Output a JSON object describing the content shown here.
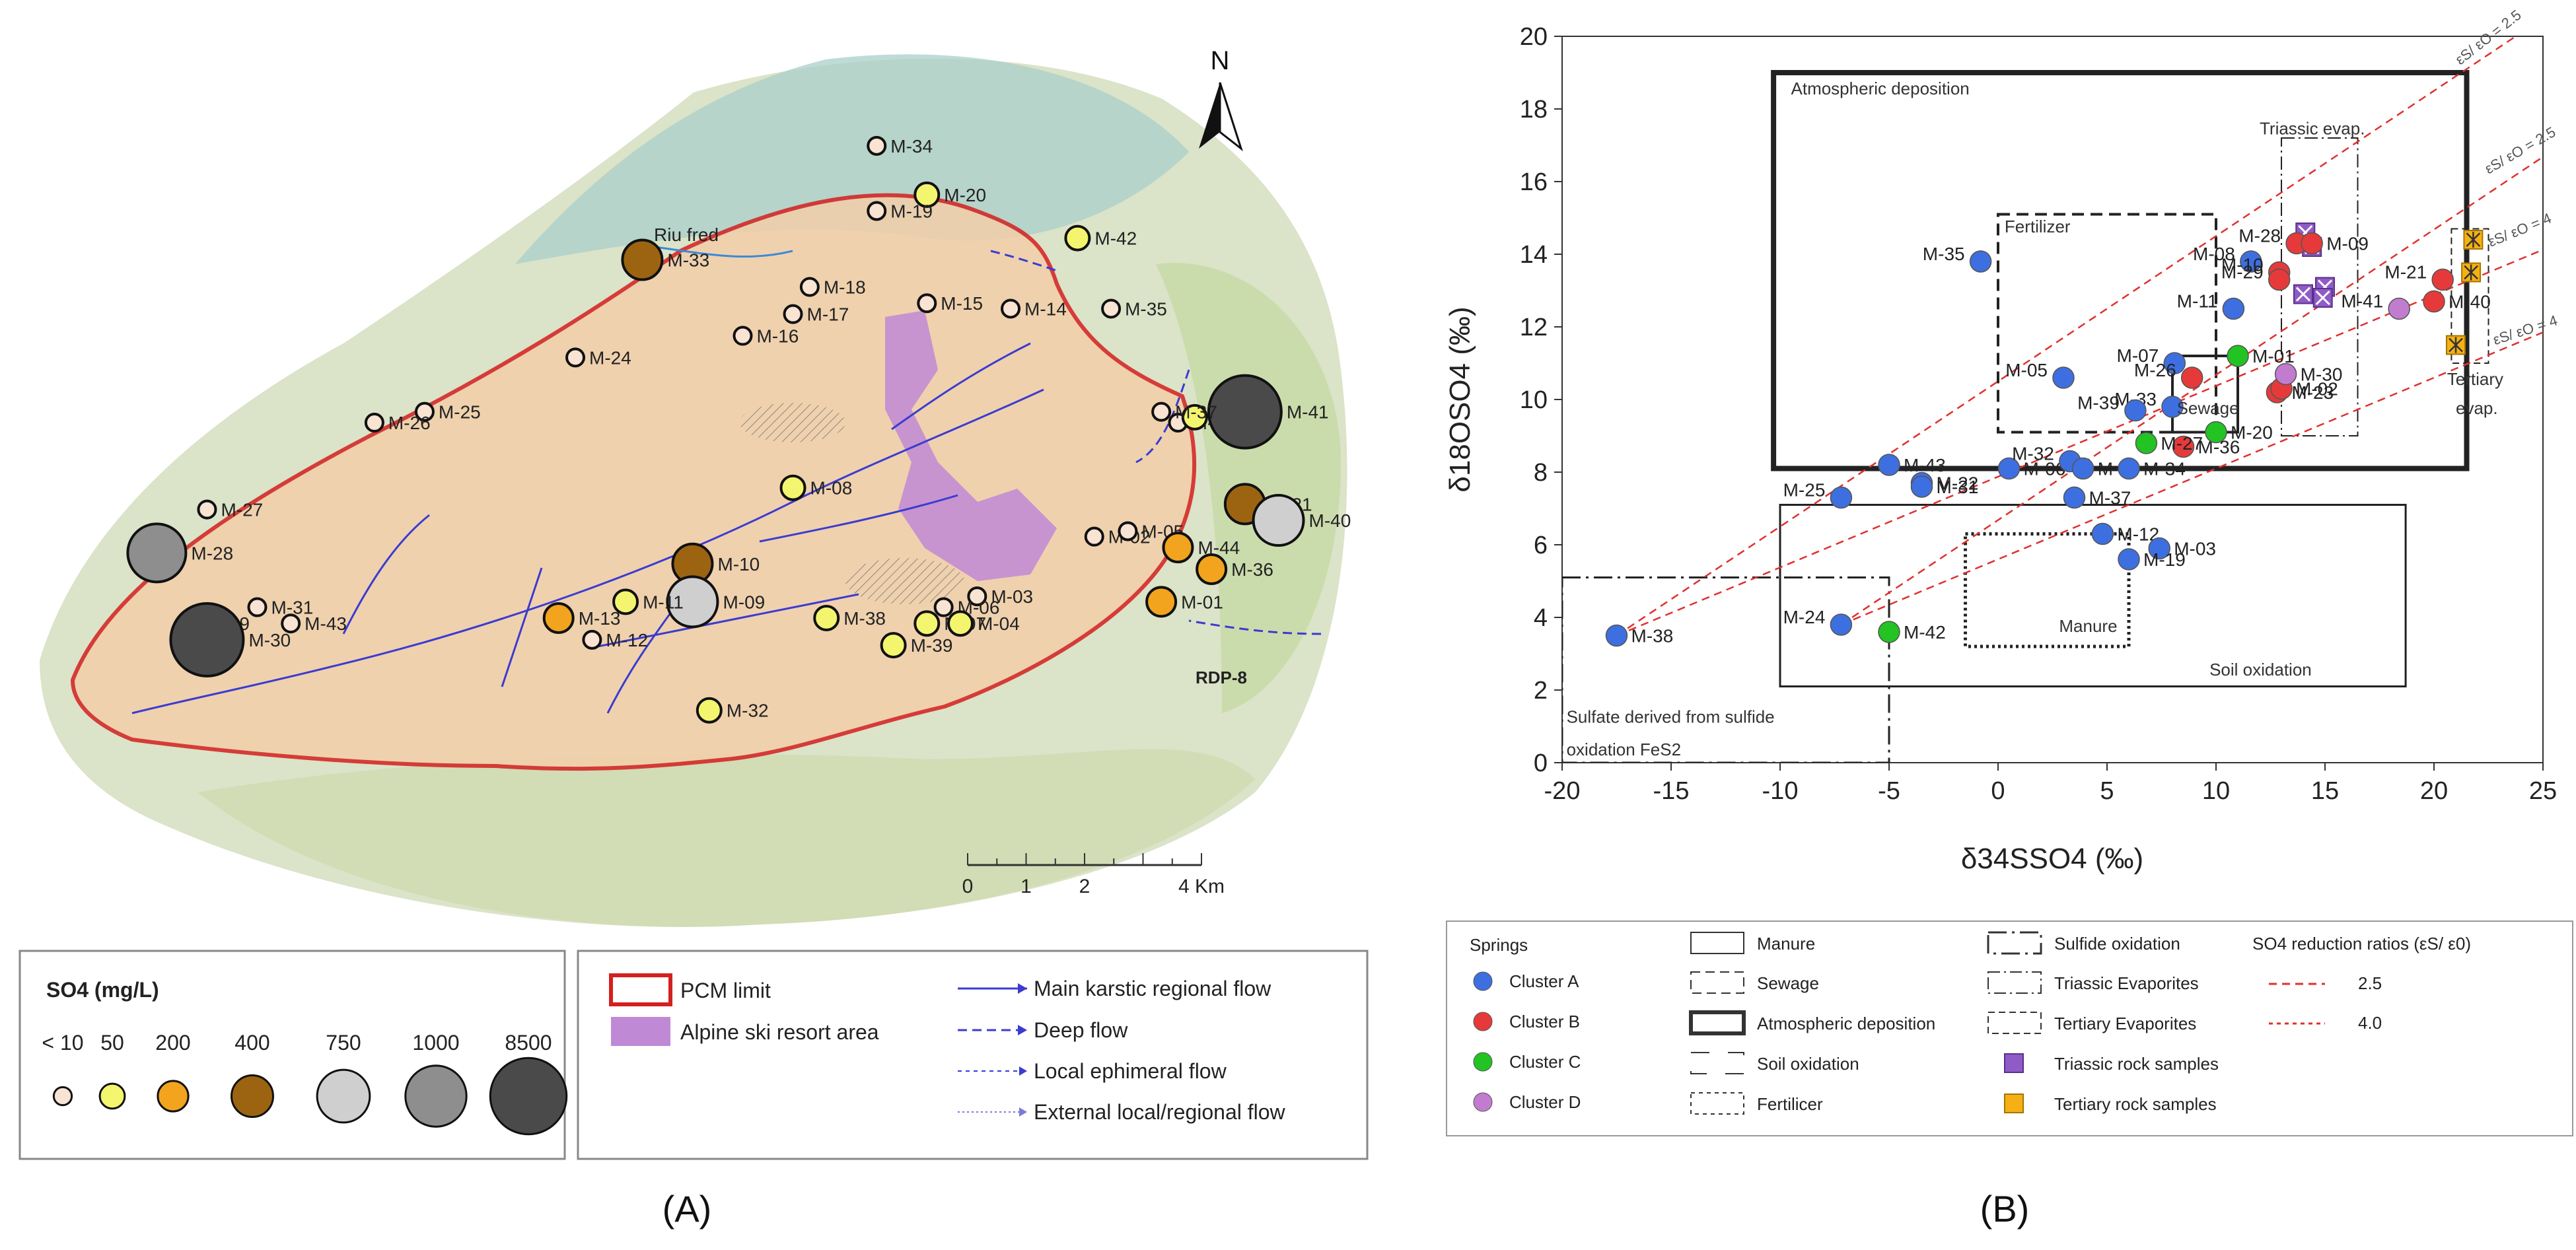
{
  "panel_labels": {
    "a": "(A)",
    "b": "(B)"
  },
  "map": {
    "north_label": "N",
    "place_label": "Riu fred",
    "rdp_label": "RDP-8",
    "scale": {
      "ticks": [
        "0",
        "1",
        "2",
        "4 Km"
      ],
      "tick_km": [
        0,
        1,
        2,
        4
      ]
    },
    "points": [
      {
        "id": "M-34",
        "cls": "lt10",
        "km": [
          5.0,
          2.2
        ]
      },
      {
        "id": "M-20",
        "cls": "50",
        "km": [
          5.3,
          3.1
        ]
      },
      {
        "id": "M-19",
        "cls": "lt10",
        "km": [
          5.0,
          3.4
        ]
      },
      {
        "id": "M-42",
        "cls": "50",
        "km": [
          6.2,
          3.9
        ]
      },
      {
        "id": "M-33",
        "cls": "400",
        "km": [
          3.6,
          4.3
        ]
      },
      {
        "id": "M-18",
        "cls": "lt10",
        "km": [
          4.6,
          4.8
        ]
      },
      {
        "id": "M-17",
        "cls": "lt10",
        "km": [
          4.5,
          5.3
        ]
      },
      {
        "id": "M-16",
        "cls": "lt10",
        "km": [
          4.2,
          5.7
        ]
      },
      {
        "id": "M-15",
        "cls": "lt10",
        "km": [
          5.3,
          5.1
        ]
      },
      {
        "id": "M-14",
        "cls": "lt10",
        "km": [
          5.8,
          5.2
        ]
      },
      {
        "id": "M-35",
        "cls": "lt10",
        "km": [
          6.4,
          5.2
        ]
      },
      {
        "id": "M-24",
        "cls": "lt10",
        "km": [
          3.2,
          6.1
        ]
      },
      {
        "id": "M-25",
        "cls": "lt10",
        "km": [
          2.3,
          7.1
        ]
      },
      {
        "id": "M-26",
        "cls": "lt10",
        "km": [
          2.0,
          7.3
        ]
      },
      {
        "id": "M-22",
        "cls": "lt10",
        "km": [
          6.8,
          7.3
        ]
      },
      {
        "id": "M-23",
        "cls": "50",
        "km": [
          6.9,
          7.2
        ]
      },
      {
        "id": "M-41",
        "cls": "8500",
        "km": [
          7.2,
          7.1
        ]
      },
      {
        "id": "M-37",
        "cls": "lt10",
        "km": [
          6.7,
          7.1
        ]
      },
      {
        "id": "M-08",
        "cls": "50",
        "km": [
          4.5,
          8.5
        ]
      },
      {
        "id": "M-27",
        "cls": "lt10",
        "km": [
          1.0,
          8.9
        ]
      },
      {
        "id": "M-21",
        "cls": "400",
        "km": [
          7.2,
          8.8
        ]
      },
      {
        "id": "M-40",
        "cls": "750",
        "km": [
          7.4,
          9.1
        ]
      },
      {
        "id": "M-02",
        "cls": "lt10",
        "km": [
          6.3,
          9.4
        ]
      },
      {
        "id": "M-05",
        "cls": "lt10",
        "km": [
          6.5,
          9.3
        ]
      },
      {
        "id": "M-10",
        "cls": "400",
        "km": [
          3.9,
          9.9
        ]
      },
      {
        "id": "M-09",
        "cls": "750",
        "km": [
          3.9,
          10.6
        ]
      },
      {
        "id": "M-11",
        "cls": "50",
        "km": [
          3.5,
          10.6
        ]
      },
      {
        "id": "M-13",
        "cls": "200",
        "km": [
          3.1,
          10.9
        ]
      },
      {
        "id": "M-28",
        "cls": "1000",
        "km": [
          0.7,
          9.7
        ]
      },
      {
        "id": "M-29",
        "cls": "50",
        "km": [
          0.9,
          11.0
        ]
      },
      {
        "id": "M-30",
        "cls": "8500",
        "km": [
          1.0,
          11.3
        ]
      },
      {
        "id": "M-31",
        "cls": "lt10",
        "km": [
          1.3,
          10.7
        ]
      },
      {
        "id": "M-43",
        "cls": "lt10",
        "km": [
          1.5,
          11.0
        ]
      },
      {
        "id": "M-12",
        "cls": "lt10",
        "km": [
          3.3,
          11.3
        ]
      },
      {
        "id": "M-38",
        "cls": "50",
        "km": [
          4.7,
          10.9
        ]
      },
      {
        "id": "M-39",
        "cls": "50",
        "km": [
          5.1,
          11.4
        ]
      },
      {
        "id": "M-03",
        "cls": "lt10",
        "km": [
          5.6,
          10.5
        ]
      },
      {
        "id": "M-06",
        "cls": "lt10",
        "km": [
          5.4,
          10.7
        ]
      },
      {
        "id": "M-07",
        "cls": "50",
        "km": [
          5.3,
          11.0
        ]
      },
      {
        "id": "M-04",
        "cls": "50",
        "km": [
          5.5,
          11.0
        ]
      },
      {
        "id": "M-01",
        "cls": "200",
        "km": [
          6.7,
          10.6
        ]
      },
      {
        "id": "M-36",
        "cls": "200",
        "km": [
          7.0,
          10.0
        ]
      },
      {
        "id": "M-44",
        "cls": "200",
        "km": [
          6.8,
          9.6
        ]
      },
      {
        "id": "M-32",
        "cls": "50",
        "km": [
          4.0,
          12.6
        ]
      }
    ],
    "so4_legend": {
      "title": "SO4 (mg/L)",
      "classes": [
        {
          "key": "lt10",
          "label": "< 10",
          "color": "#f9e3d3"
        },
        {
          "key": "50",
          "label": "50",
          "color": "#f4f56e"
        },
        {
          "key": "200",
          "label": "200",
          "color": "#f2a41e"
        },
        {
          "key": "400",
          "label": "400",
          "color": "#9c6411"
        },
        {
          "key": "750",
          "label": "750",
          "color": "#cfcfcf"
        },
        {
          "key": "1000",
          "label": "1000",
          "color": "#8e8e8e"
        },
        {
          "key": "8500",
          "label": "8500",
          "color": "#4a4a4a"
        }
      ]
    },
    "flow_legend": {
      "pcm": "PCM limit",
      "ski": "Alpine ski resort area",
      "main": "Main karstic regional flow",
      "deep": "Deep flow",
      "local": "Local ephimeral flow",
      "external": "External local/regional flow"
    },
    "colors": {
      "pcm": "#d42020",
      "ski": "#c089d6",
      "flow": "#3b3bd1"
    }
  },
  "chart_data": {
    "type": "scatter",
    "xlabel": "δ34SSO4 (‰)",
    "ylabel": "δ18OSO4 (‰)",
    "xlim": [
      -20,
      25
    ],
    "ylim": [
      0,
      20
    ],
    "xticks": [
      -20,
      -15,
      -10,
      -5,
      0,
      5,
      10,
      15,
      20,
      25
    ],
    "yticks": [
      0,
      2,
      4,
      6,
      8,
      10,
      12,
      14,
      16,
      18,
      20
    ],
    "series": [
      {
        "name": "Cluster A",
        "color": "#3e6fe0",
        "points": [
          {
            "label": "M-35",
            "x": -0.8,
            "y": 13.8
          },
          {
            "label": "M-08",
            "x": 11.6,
            "y": 13.8
          },
          {
            "label": "M-11",
            "x": 10.8,
            "y": 12.5
          },
          {
            "label": "M-07",
            "x": 8.1,
            "y": 11.0
          },
          {
            "label": "M-05",
            "x": 3.0,
            "y": 10.6
          },
          {
            "label": "M-33",
            "x": 8.0,
            "y": 9.8
          },
          {
            "label": "M-39",
            "x": 6.3,
            "y": 9.7
          },
          {
            "label": "M-43",
            "x": -5.0,
            "y": 8.2
          },
          {
            "label": "M-22",
            "x": -3.5,
            "y": 7.7
          },
          {
            "label": "M-31",
            "x": -3.5,
            "y": 7.6
          },
          {
            "label": "M-06",
            "x": 0.5,
            "y": 8.1
          },
          {
            "label": "M-32",
            "x": 3.3,
            "y": 8.3
          },
          {
            "label": "M-04",
            "x": 3.9,
            "y": 8.1
          },
          {
            "label": "M-34",
            "x": 6.0,
            "y": 8.1
          },
          {
            "label": "M-25",
            "x": -7.2,
            "y": 7.3
          },
          {
            "label": "M-37",
            "x": 3.5,
            "y": 7.3
          },
          {
            "label": "M-12",
            "x": 4.8,
            "y": 6.3
          },
          {
            "label": "M-03",
            "x": 7.4,
            "y": 5.9
          },
          {
            "label": "M-19",
            "x": 6.0,
            "y": 5.6
          },
          {
            "label": "M-24",
            "x": -7.2,
            "y": 3.8
          },
          {
            "label": "M-38",
            "x": -17.5,
            "y": 3.5
          }
        ]
      },
      {
        "name": "Cluster B",
        "color": "#e63a3a",
        "points": [
          {
            "label": "M-28",
            "x": 13.7,
            "y": 14.3
          },
          {
            "label": "M-09",
            "x": 14.4,
            "y": 14.3
          },
          {
            "label": "M-10",
            "x": 12.9,
            "y": 13.5
          },
          {
            "label": "M-29",
            "x": 12.9,
            "y": 13.3
          },
          {
            "label": "M-21",
            "x": 20.4,
            "y": 13.3
          },
          {
            "label": "M-40",
            "x": 20.0,
            "y": 12.7
          },
          {
            "label": "M-26",
            "x": 8.9,
            "y": 10.6
          },
          {
            "label": "M-23",
            "x": 12.8,
            "y": 10.2
          },
          {
            "label": "M-02",
            "x": 13.0,
            "y": 10.3
          },
          {
            "label": "M-36",
            "x": 8.5,
            "y": 8.7
          }
        ]
      },
      {
        "name": "Cluster C",
        "color": "#22c322",
        "points": [
          {
            "label": "M-01",
            "x": 11.0,
            "y": 11.2
          },
          {
            "label": "M-20",
            "x": 10.0,
            "y": 9.1
          },
          {
            "label": "M-27",
            "x": 6.8,
            "y": 8.8
          },
          {
            "label": "M-42",
            "x": -5.0,
            "y": 3.6
          }
        ]
      },
      {
        "name": "Cluster D",
        "color": "#c27ccf",
        "points": [
          {
            "label": "M-30",
            "x": 13.2,
            "y": 10.7
          },
          {
            "label": "M-41",
            "x": 18.4,
            "y": 12.5
          }
        ]
      }
    ],
    "rock_samples": {
      "triassic": [
        [
          14.1,
          14.6
        ],
        [
          14.4,
          14.2
        ],
        [
          15.0,
          13.1
        ],
        [
          14.0,
          12.9
        ],
        [
          14.9,
          12.8
        ]
      ],
      "tertiary": [
        [
          21.8,
          14.4
        ],
        [
          21.7,
          13.5
        ],
        [
          21.0,
          11.5
        ]
      ]
    },
    "regions": {
      "atmospheric": "Atmospheric deposition",
      "triassic": "Triassic evap.",
      "fertilizer": "Fertilizer",
      "sewage": "Sewage",
      "manure": "Manure",
      "soil": "Soil oxidation",
      "sulfide_1": "Sulfate derived from sulfide",
      "sulfide_2": "oxidation FeS2",
      "tertiary_1": "Tertiary",
      "tertiary_2": "evap."
    },
    "ratio_line_labels": {
      "r25": "εS/ εO = 2.5",
      "r40": "εS/ εO = 4"
    },
    "legend": {
      "springs": "Springs",
      "cluster_a": "Cluster A",
      "cluster_b": "Cluster B",
      "cluster_c": "Cluster C",
      "cluster_d": "Cluster D",
      "manure": "Manure",
      "sewage": "Sewage",
      "atmospheric": "Atmospheric deposition",
      "soil": "Soil oxidation",
      "fertilicer": "Fertilicer",
      "sulfide": "Sulfide oxidation",
      "triassic_evap": "Triassic Evaporites",
      "tertiary_evap": "Tertiary Evaporites",
      "triassic_rock": "Triassic rock samples",
      "tertiary_rock": "Tertiary rock samples",
      "ratio_title": "SO4 reduction ratios (εS/ ε0)",
      "r25": "2.5",
      "r40": "4.0"
    }
  }
}
